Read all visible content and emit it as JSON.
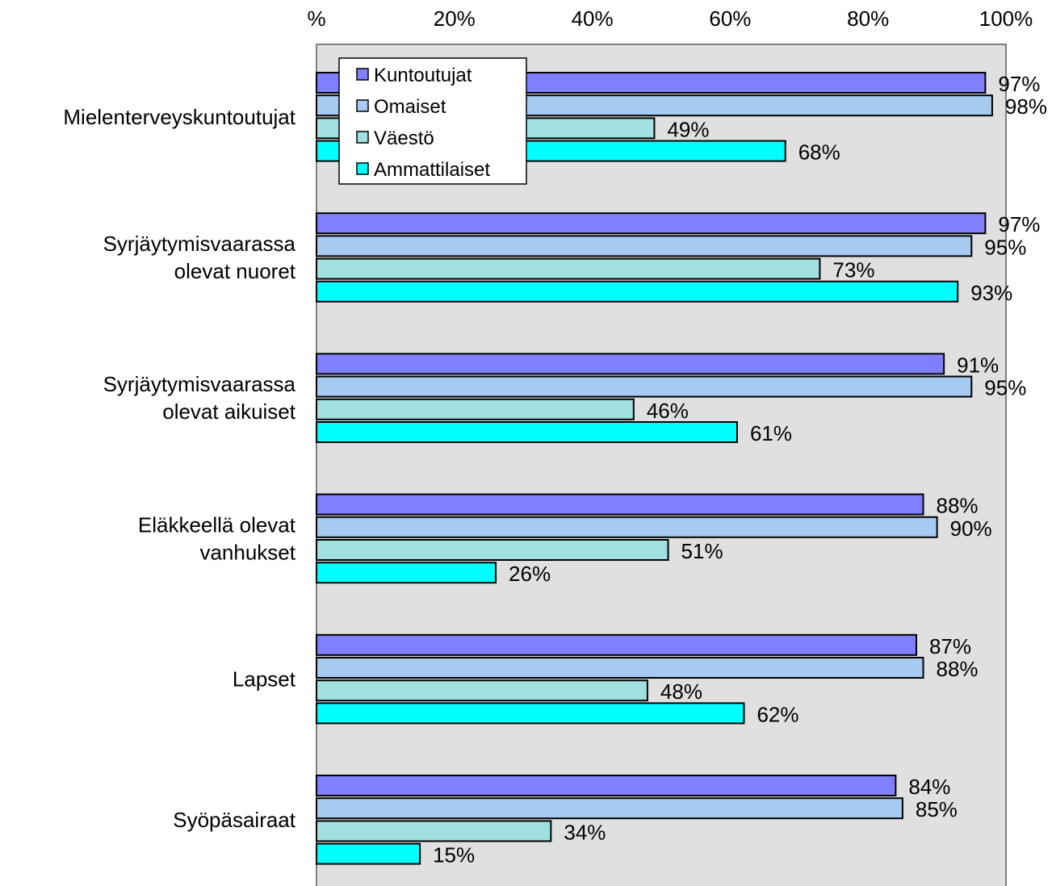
{
  "chart_data": {
    "type": "bar",
    "orientation": "horizontal",
    "categories": [
      [
        "Mielenterveyskuntoutujat"
      ],
      [
        "Syrjäytymisvaarassa",
        "olevat nuoret"
      ],
      [
        "Syrjäytymisvaarassa",
        "olevat aikuiset"
      ],
      [
        "Eläkkeellä olevat",
        "vanhukset"
      ],
      [
        "Lapset"
      ],
      [
        "Syöpäsairaat"
      ]
    ],
    "series": [
      {
        "name": "Kuntoutujat",
        "color": "#8080ff",
        "values": [
          97,
          97,
          91,
          88,
          87,
          84
        ]
      },
      {
        "name": "Omaiset",
        "color": "#a6caf0",
        "values": [
          98,
          95,
          95,
          90,
          88,
          85
        ]
      },
      {
        "name": "Väestö",
        "color": "#a0e0e0",
        "values": [
          49,
          73,
          46,
          51,
          48,
          34
        ]
      },
      {
        "name": "Ammattilaiset",
        "color": "#00ffff",
        "values": [
          68,
          93,
          61,
          26,
          62,
          15
        ]
      }
    ],
    "x_ticks": [
      "%",
      "20%",
      "40%",
      "60%",
      "80%",
      "100%"
    ],
    "xlim": [
      0,
      100
    ],
    "value_suffix": "%",
    "x_axis_position": "top",
    "legend_position": "top-left",
    "plot_background": "#e0e0e0",
    "grid": false
  }
}
